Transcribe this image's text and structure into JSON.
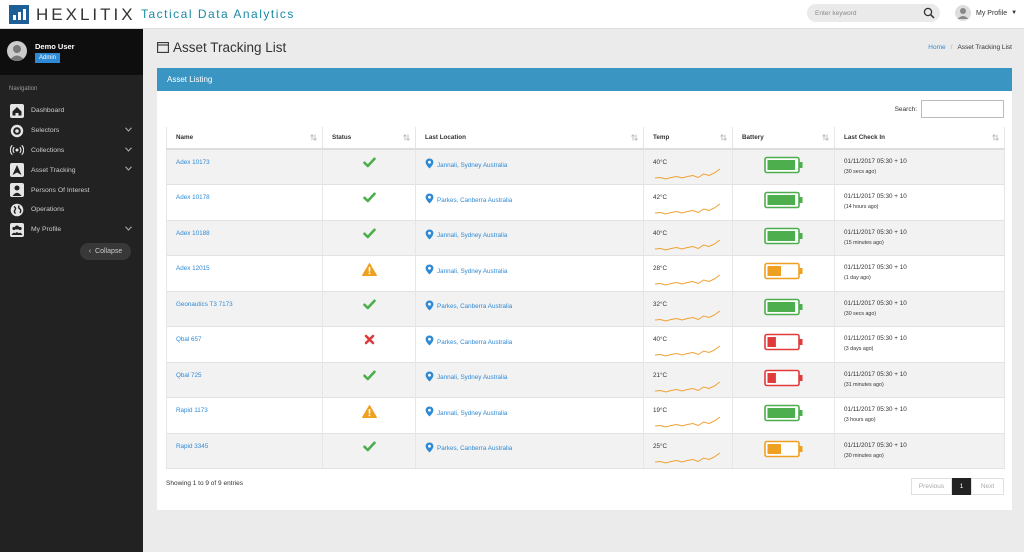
{
  "app": {
    "brand": "HEXLITIX",
    "tagline": "Tactical Data Analytics",
    "search_placeholder": "Enter keyword",
    "profile_label": "My Profile"
  },
  "sidebar": {
    "user_name": "Demo User",
    "role": "Admin",
    "nav_heading": "Navigation",
    "items": [
      {
        "label": "Dashboard",
        "icon": "home-icon",
        "has_caret": false
      },
      {
        "label": "Selectors",
        "icon": "target-icon",
        "has_caret": true
      },
      {
        "label": "Collections",
        "icon": "broadcast-icon",
        "has_caret": true
      },
      {
        "label": "Asset Tracking",
        "icon": "navigation-icon",
        "has_caret": true
      },
      {
        "label": "Persons Of Interest",
        "icon": "person-icon",
        "has_caret": false
      },
      {
        "label": "Operations",
        "icon": "globe-icon",
        "has_caret": false
      },
      {
        "label": "My Profile",
        "icon": "group-icon",
        "has_caret": true
      }
    ],
    "collapse_label": "Collapse"
  },
  "page": {
    "title": "Asset Tracking List",
    "breadcrumb": [
      "Home",
      "Asset Tracking List"
    ]
  },
  "panel": {
    "title": "Asset Listing",
    "search_label": "Search:"
  },
  "table": {
    "columns": [
      "Name",
      "Status",
      "Last Location",
      "Temp",
      "Battery",
      "Last Check In"
    ],
    "rows": [
      {
        "name": "Adex 10173",
        "status": "ok",
        "location": "Jannali, Sydney Australia",
        "temp": "40°C",
        "battery": "high",
        "checkin": "01/11/2017 05:30 + 10",
        "ago": "(30 secs ago)"
      },
      {
        "name": "Adex 10178",
        "status": "ok",
        "location": "Parkes, Canberra Australia",
        "temp": "42°C",
        "battery": "high",
        "checkin": "01/11/2017 05:30 + 10",
        "ago": "(14 hours ago)"
      },
      {
        "name": "Adex 10188",
        "status": "ok",
        "location": "Jannali, Sydney Australia",
        "temp": "40°C",
        "battery": "high",
        "checkin": "01/11/2017 05:30 + 10",
        "ago": "(15 minutes ago)"
      },
      {
        "name": "Adex 12015",
        "status": "warn",
        "location": "Jannali, Sydney Australia",
        "temp": "28°C",
        "battery": "mid",
        "checkin": "01/11/2017 05:30 + 10",
        "ago": "(1 day ago)"
      },
      {
        "name": "Geonautics T3 7173",
        "status": "ok",
        "location": "Parkes, Canberra Australia",
        "temp": "32°C",
        "battery": "high",
        "checkin": "01/11/2017 05:30 + 10",
        "ago": "(30 secs ago)"
      },
      {
        "name": "Qbal 657",
        "status": "error",
        "location": "Parkes, Canberra Australia",
        "temp": "40°C",
        "battery": "low",
        "checkin": "01/11/2017 05:30 + 10",
        "ago": "(3 days ago)"
      },
      {
        "name": "Qbal 725",
        "status": "ok",
        "location": "Jannali, Sydney Australia",
        "temp": "21°C",
        "battery": "low",
        "checkin": "01/11/2017 05:30 + 10",
        "ago": "(31 minutes ago)"
      },
      {
        "name": "Rapid 1173",
        "status": "warn",
        "location": "Jannali, Sydney Australia",
        "temp": "19°C",
        "battery": "high",
        "checkin": "01/11/2017 05:30 + 10",
        "ago": "(3 hours ago)"
      },
      {
        "name": "Rapid 3345",
        "status": "ok",
        "location": "Parkes, Canberra Australia",
        "temp": "25°C",
        "battery": "mid",
        "checkin": "01/11/2017 05:30 + 10",
        "ago": "(30 minutes ago)"
      }
    ]
  },
  "footer": {
    "showing": "Showing 1 to 9 of 9 entries",
    "prev": "Previous",
    "page": "1",
    "next": "Next"
  },
  "colors": {
    "accent": "#2f8ad6",
    "panel_header": "#3b95c2",
    "ok": "#4cae4c",
    "warn": "#f0a020",
    "error": "#e03a3a",
    "sparkline": "#f0a030",
    "sidebar": "#222222"
  }
}
